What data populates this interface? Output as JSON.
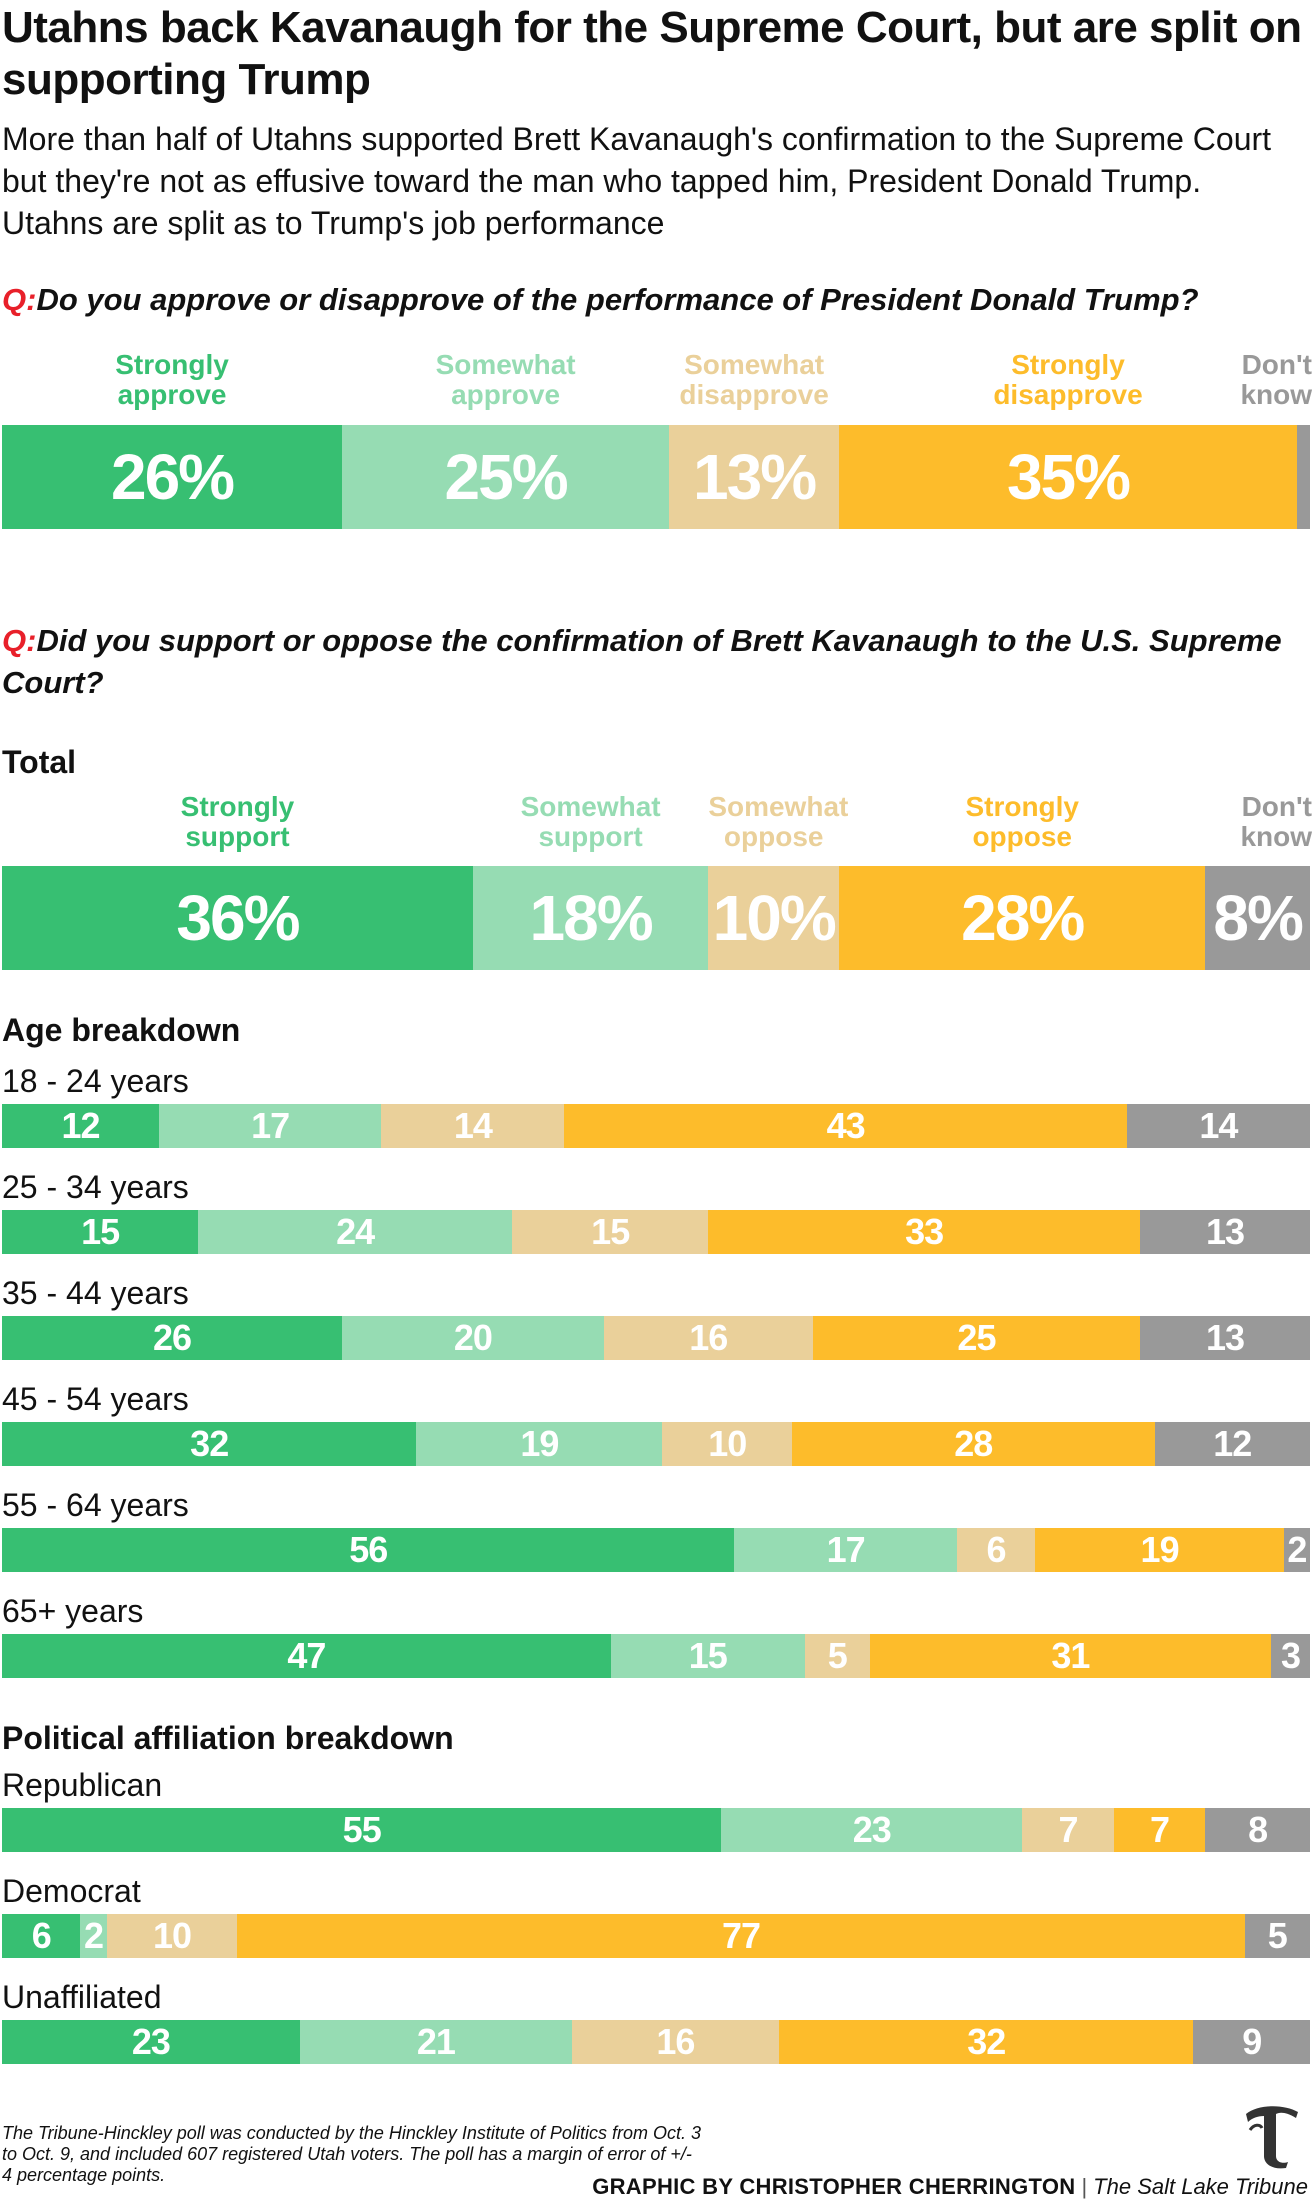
{
  "title": "Utahns back Kavanaugh for the Supreme Court, but are split on supporting Trump",
  "subtitle": "More than half of Utahns supported Brett Kavanaugh's confirmation to the Supreme Court but they're not as effusive toward the man who tapped him, President Donald Trump. Utahns are split as to Trump's job performance",
  "q_marker": "Q:",
  "colors": {
    "strong_support": "#37bf72",
    "some_support": "#96dcb3",
    "some_oppose": "#ead09a",
    "strong_oppose": "#fdbc2b",
    "dont_know": "#999999",
    "q_marker": "#e8202a"
  },
  "logo_icon": "tribune-t-logo-icon",
  "chart_data": [
    {
      "type": "bar",
      "id": "trump",
      "orientation": "horizontal-stacked",
      "title": "Do you approve or disapprove of the performance of President Donald Trump?",
      "categories": [
        "Strongly approve",
        "Somewhat approve",
        "Somewhat disapprove",
        "Strongly disapprove",
        "Don't know"
      ],
      "legend": [
        [
          "Strongly",
          "approve"
        ],
        [
          "Somewhat",
          "approve"
        ],
        [
          "Somewhat",
          "disapprove"
        ],
        [
          "Strongly",
          "disapprove"
        ],
        [
          "Don't",
          "know"
        ]
      ],
      "value_suffix": "%",
      "rows": [
        {
          "label": "",
          "values": [
            26,
            25,
            13,
            35,
            1
          ],
          "shown": [
            "26",
            "25",
            "13",
            "35",
            ""
          ]
        }
      ]
    },
    {
      "type": "bar",
      "id": "kavanaugh",
      "orientation": "horizontal-stacked",
      "title": "Did you support or oppose the confirmation of Brett Kavanaugh to the U.S. Supreme Court?",
      "categories": [
        "Strongly support",
        "Somewhat support",
        "Somewhat oppose",
        "Strongly oppose",
        "Don't know"
      ],
      "legend": [
        [
          "Strongly",
          "support"
        ],
        [
          "Somewhat",
          "support"
        ],
        [
          "Somewhat",
          "oppose"
        ],
        [
          "Strongly",
          "oppose"
        ],
        [
          "Don't",
          "know"
        ]
      ],
      "value_suffix": "%",
      "total": {
        "heading": "Total",
        "values": [
          36,
          18,
          10,
          28,
          8
        ]
      },
      "age": {
        "heading": "Age breakdown",
        "rows": [
          {
            "label": "18 - 24 years",
            "values": [
              12,
              17,
              14,
              43,
              14
            ]
          },
          {
            "label": "25 - 34 years",
            "values": [
              15,
              24,
              15,
              33,
              13
            ]
          },
          {
            "label": "35 - 44 years",
            "values": [
              26,
              20,
              16,
              25,
              13
            ]
          },
          {
            "label": "45 - 54 years",
            "values": [
              32,
              19,
              10,
              28,
              12
            ]
          },
          {
            "label": "55 - 64 years",
            "values": [
              56,
              17,
              6,
              19,
              2
            ]
          },
          {
            "label": "65+ years",
            "values": [
              47,
              15,
              5,
              31,
              3
            ]
          }
        ]
      },
      "political": {
        "heading": "Political affiliation breakdown",
        "rows": [
          {
            "label": "Republican",
            "values": [
              55,
              23,
              7,
              7,
              8
            ]
          },
          {
            "label": "Democrat",
            "values": [
              6,
              2,
              10,
              77,
              5
            ]
          },
          {
            "label": "Unaffiliated",
            "values": [
              23,
              21,
              16,
              32,
              9
            ]
          }
        ]
      }
    }
  ],
  "footnote": "The Tribune-Hinckley poll was conducted by the Hinckley Institute of Politics from Oct. 3 to Oct. 9, and included 607 registered Utah voters. The poll has a margin of error of +/- 4 percentage points.",
  "credit": {
    "graphic_by": "GRAPHIC BY CHRISTOPHER CHERRINGTON",
    "separator": "|",
    "publication": "The Salt Lake Tribune"
  }
}
